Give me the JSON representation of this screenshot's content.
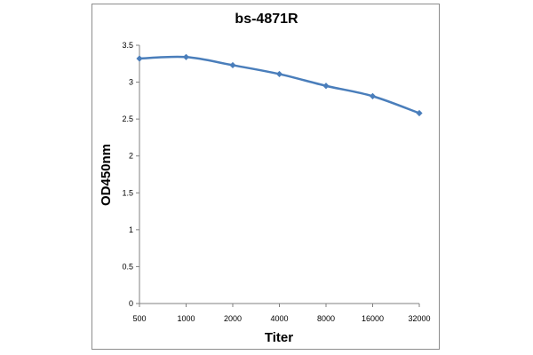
{
  "chart_data": {
    "type": "line",
    "title": "bs-4871R",
    "xlabel": "Titer",
    "ylabel": "OD450nm",
    "categories": [
      "500",
      "1000",
      "2000",
      "4000",
      "8000",
      "16000",
      "32000"
    ],
    "series": [
      {
        "values": [
          3.32,
          3.34,
          3.23,
          3.11,
          2.95,
          2.81,
          2.58
        ]
      }
    ],
    "ylim": [
      0,
      3.5
    ],
    "yticks": [
      "0",
      "0.5",
      "1",
      "1.5",
      "2",
      "2.5",
      "3",
      "3.5"
    ],
    "grid": false,
    "legend": "none",
    "colors": {
      "series": "#4a7ebb",
      "axis": "#808080"
    }
  }
}
